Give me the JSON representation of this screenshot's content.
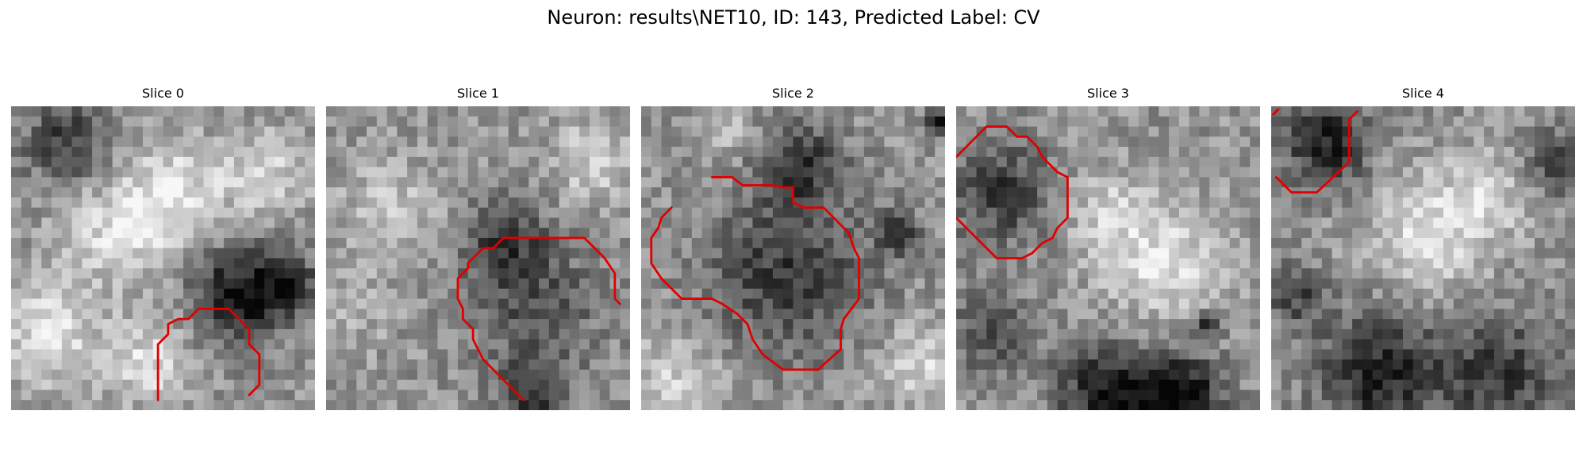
{
  "figure": {
    "title": "Neuron: results\\NET10, ID: 143, Predicted Label: CV",
    "contour_color": "#e00000"
  },
  "panels": [
    {
      "title": "Slice 0",
      "contour": [
        [
          [
            14.5,
            29
          ],
          [
            14.5,
            23.5
          ],
          [
            15.5,
            22.5
          ],
          [
            15.5,
            21.5
          ],
          [
            16.5,
            21
          ],
          [
            17.5,
            21
          ],
          [
            18.5,
            20
          ],
          [
            21.5,
            20
          ],
          [
            23.5,
            22
          ],
          [
            23.5,
            23.5
          ],
          [
            24.5,
            24.5
          ],
          [
            24.5,
            27.5
          ],
          [
            23.5,
            28.5
          ]
        ]
      ]
    },
    {
      "title": "Slice 1",
      "contour": [
        [
          [
            19.5,
            29
          ],
          [
            15.5,
            25
          ],
          [
            14.5,
            23
          ],
          [
            14.5,
            22
          ],
          [
            13.5,
            21
          ],
          [
            13.5,
            20
          ],
          [
            13,
            19
          ],
          [
            13,
            17
          ],
          [
            14,
            16
          ],
          [
            14,
            15.5
          ],
          [
            15,
            14.5
          ],
          [
            15.5,
            14
          ],
          [
            16.5,
            14
          ],
          [
            17.5,
            13
          ],
          [
            25.5,
            13
          ],
          [
            27.5,
            15
          ],
          [
            28.5,
            16.5
          ],
          [
            28.5,
            19
          ],
          [
            29,
            19.5
          ]
        ]
      ]
    },
    {
      "title": "Slice 2",
      "contour": [
        [
          [
            7,
            7
          ],
          [
            9,
            7
          ],
          [
            10,
            7.8
          ],
          [
            13,
            7.8
          ],
          [
            14,
            8
          ],
          [
            15,
            8
          ],
          [
            15,
            9.5
          ],
          [
            16,
            10
          ],
          [
            18,
            10
          ],
          [
            19.5,
            11.5
          ],
          [
            20.5,
            12.5
          ],
          [
            21,
            14
          ],
          [
            21.5,
            15
          ],
          [
            21.5,
            19
          ],
          [
            20,
            21
          ],
          [
            19.7,
            22
          ],
          [
            19.7,
            24
          ],
          [
            18,
            25.5
          ],
          [
            17.5,
            26
          ],
          [
            14,
            26
          ],
          [
            12,
            24.5
          ],
          [
            11,
            23
          ],
          [
            10.5,
            21.5
          ],
          [
            10,
            21
          ],
          [
            9.5,
            20.5
          ],
          [
            8,
            19.5
          ],
          [
            7,
            19
          ],
          [
            4,
            19
          ],
          [
            2,
            17
          ],
          [
            1,
            15.5
          ],
          [
            1,
            13
          ],
          [
            1.7,
            12
          ],
          [
            2,
            11
          ],
          [
            3,
            10
          ]
        ]
      ]
    },
    {
      "title": "Slice 3",
      "contour": [
        [
          [
            0,
            5
          ],
          [
            2,
            3
          ],
          [
            3,
            2
          ],
          [
            5,
            2
          ],
          [
            6,
            3
          ],
          [
            7,
            3
          ],
          [
            8,
            4
          ],
          [
            8.5,
            5
          ],
          [
            10,
            6.5
          ],
          [
            11,
            7
          ],
          [
            11,
            11
          ],
          [
            10,
            12
          ],
          [
            9.5,
            13
          ],
          [
            8.5,
            13.5
          ],
          [
            8,
            14
          ],
          [
            7.5,
            14.5
          ],
          [
            6.5,
            15
          ],
          [
            4,
            15
          ],
          [
            1,
            12
          ],
          [
            0,
            11
          ]
        ]
      ]
    },
    {
      "title": "Slice 4",
      "contour": [
        [
          [
            0.2,
            0.8
          ],
          [
            0.7,
            0.3
          ]
        ],
        [
          [
            0.5,
            7
          ],
          [
            2,
            8.5
          ],
          [
            4.5,
            8.5
          ],
          [
            7.7,
            5.5
          ],
          [
            7.7,
            1.3
          ],
          [
            8.5,
            0.5
          ]
        ]
      ]
    }
  ]
}
